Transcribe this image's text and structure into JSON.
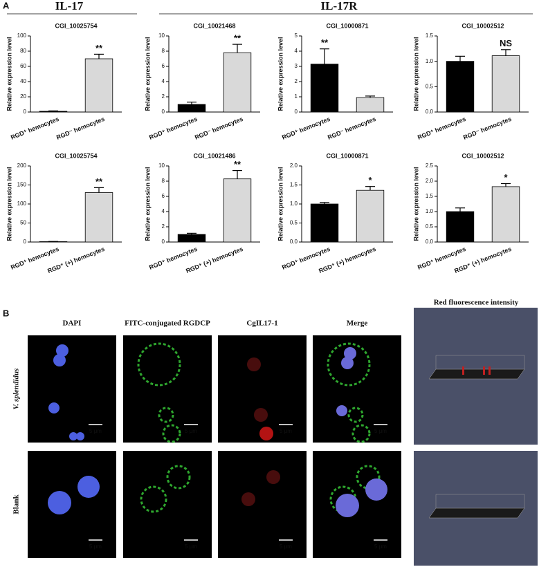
{
  "figure": {
    "panel_a": {
      "label": "A",
      "group_left": "IL-17",
      "group_right": "IL-17R"
    },
    "panel_b": {
      "label": "B",
      "columns": [
        "DAPI",
        "FITC-conjugated RGDCP",
        "CgIL17-1",
        "Merge"
      ],
      "rows": [
        "V. splendidus",
        "Blank"
      ],
      "scale_bar": "5 μm",
      "intensity_title": "Red fluorescence intensity"
    }
  },
  "chart_data": [
    {
      "type": "bar",
      "title": "CGI_10025754",
      "ylabel": "Relative expression level",
      "categories": [
        "RGD⁺ hemocytes",
        "RGD⁻ hemocytes"
      ],
      "values": [
        1,
        70
      ],
      "errors": [
        0.5,
        6
      ],
      "colors": [
        "#000000",
        "#d9d9d9"
      ],
      "annotations": [
        {
          "index": 1,
          "text": "**"
        }
      ],
      "ylim": [
        0,
        100
      ],
      "yticks": [
        0,
        20,
        40,
        60,
        80,
        100
      ]
    },
    {
      "type": "bar",
      "title": "CGI_10021468",
      "ylabel": "Relative expression level",
      "categories": [
        "RGD⁺ hemocytes",
        "RGD⁻ hemocytes"
      ],
      "values": [
        1,
        7.8
      ],
      "errors": [
        0.3,
        1.1
      ],
      "colors": [
        "#000000",
        "#d9d9d9"
      ],
      "annotations": [
        {
          "index": 1,
          "text": "**"
        }
      ],
      "ylim": [
        0,
        10
      ],
      "yticks": [
        0,
        2,
        4,
        6,
        8,
        10
      ]
    },
    {
      "type": "bar",
      "title": "CGI_10000871",
      "ylabel": "Relative expression level",
      "categories": [
        "RGD⁺ hemocytes",
        "RGD⁻ hemocytes"
      ],
      "values": [
        3.15,
        0.95
      ],
      "errors": [
        1,
        0.1
      ],
      "colors": [
        "#000000",
        "#d9d9d9"
      ],
      "annotations": [
        {
          "index": 0,
          "text": "**"
        }
      ],
      "ylim": [
        0,
        5
      ],
      "yticks": [
        0,
        1,
        2,
        3,
        4,
        5
      ]
    },
    {
      "type": "bar",
      "title": "CGI_10002512",
      "ylabel": "Relative expression level",
      "categories": [
        "RGD⁺ hemocytes",
        "RGD⁻ hemocytes"
      ],
      "values": [
        1,
        1.11
      ],
      "errors": [
        0.1,
        0.12
      ],
      "colors": [
        "#000000",
        "#d9d9d9"
      ],
      "annotations": [
        {
          "index": 1,
          "text": "NS"
        }
      ],
      "ylim": [
        0,
        1.5
      ],
      "yticks": [
        {
          "value": 0,
          "label": "0.0"
        },
        0.5,
        {
          "value": 1,
          "label": "1.0"
        },
        1.5
      ]
    },
    {
      "type": "bar",
      "title": "CGI_10025754",
      "ylabel": "Relative expression level",
      "categories": [
        "RGD⁺ hemocytes",
        "RGD⁺ (+) hemocytes"
      ],
      "values": [
        1,
        130
      ],
      "errors": [
        0.5,
        13
      ],
      "colors": [
        "#000000",
        "#d9d9d9"
      ],
      "annotations": [
        {
          "index": 1,
          "text": "**"
        }
      ],
      "ylim": [
        0,
        200
      ],
      "yticks": [
        0,
        50,
        100,
        150,
        200
      ]
    },
    {
      "type": "bar",
      "title": "CGI_10021486",
      "ylabel": "Relative expression level",
      "categories": [
        "RGD⁺ hemocytes",
        "RGD⁺ (+) hemocytes"
      ],
      "values": [
        1,
        8.3
      ],
      "errors": [
        0.15,
        1.1
      ],
      "colors": [
        "#000000",
        "#d9d9d9"
      ],
      "annotations": [
        {
          "index": 1,
          "text": "**"
        }
      ],
      "ylim": [
        0,
        10
      ],
      "yticks": [
        0,
        2,
        4,
        6,
        8,
        10
      ]
    },
    {
      "type": "bar",
      "title": "CGI_10000871",
      "ylabel": "Relative expression level",
      "categories": [
        "RGD⁺ hemocytes",
        "RGD⁺ (+) hemocytes"
      ],
      "values": [
        1,
        1.36
      ],
      "errors": [
        0.04,
        0.1
      ],
      "colors": [
        "#000000",
        "#d9d9d9"
      ],
      "annotations": [
        {
          "index": 1,
          "text": "*"
        }
      ],
      "ylim": [
        0,
        2
      ],
      "yticks": [
        {
          "value": 0,
          "label": "0.0"
        },
        0.5,
        {
          "value": 1,
          "label": "1.0"
        },
        1.5,
        {
          "value": 2,
          "label": "2.0"
        }
      ]
    },
    {
      "type": "bar",
      "title": "CGI_10002512",
      "ylabel": "Relative expression level",
      "categories": [
        "RGD⁺ hemocytes",
        "RGD⁺ (+) hemocytes"
      ],
      "values": [
        1,
        1.82
      ],
      "errors": [
        0.12,
        0.1
      ],
      "colors": [
        "#000000",
        "#d9d9d9"
      ],
      "annotations": [
        {
          "index": 1,
          "text": "*"
        }
      ],
      "ylim": [
        0,
        2.5
      ],
      "yticks": [
        {
          "value": 0,
          "label": "0.0"
        },
        0.5,
        {
          "value": 1,
          "label": "1.0"
        },
        1.5,
        {
          "value": 2,
          "label": "2.0"
        },
        2.5
      ]
    }
  ]
}
